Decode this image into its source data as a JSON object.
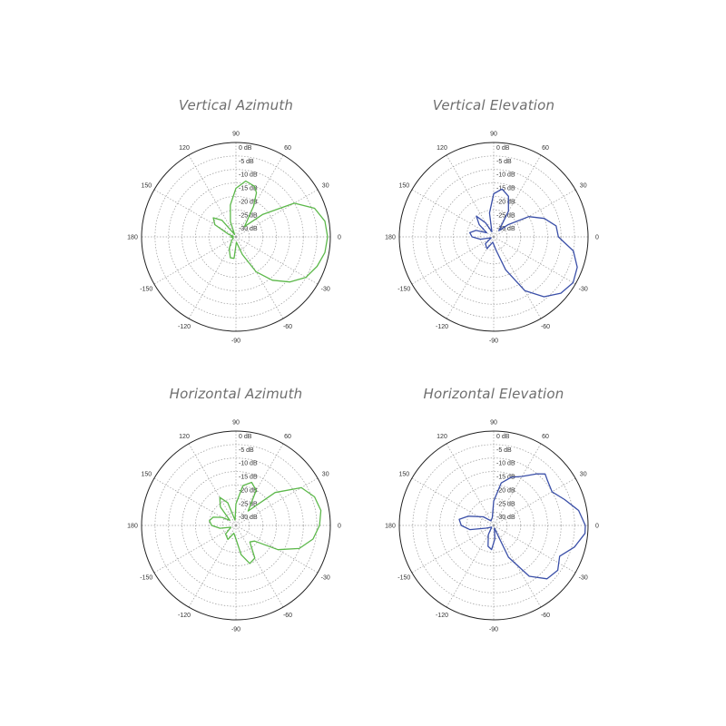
{
  "colors": {
    "green": "#5cb84a",
    "blue": "#3a4fa8",
    "grid": "#9a9a9a",
    "title": "#6e6e6e"
  },
  "chart_data": [
    {
      "type": "polar",
      "title": "Vertical Azimuth",
      "color": "#5cb84a",
      "angle_labels": [
        "0",
        "30",
        "60",
        "90",
        "120",
        "150",
        "180",
        "-150",
        "-120",
        "-90",
        "-60",
        "-30"
      ],
      "angle_ticks": [
        0,
        30,
        60,
        90,
        120,
        150,
        180,
        -150,
        -120,
        -90,
        -60,
        -30
      ],
      "radial_labels": [
        "0 dB",
        "-5 dB",
        "-10 dB",
        "-15 dB",
        "-20 dB",
        "-25 dB",
        "-30 dB"
      ],
      "rlim": [
        -35,
        0
      ],
      "grid": true,
      "points": [
        [
          0,
          -1
        ],
        [
          10,
          -1.5
        ],
        [
          20,
          -4
        ],
        [
          30,
          -10
        ],
        [
          40,
          -22
        ],
        [
          50,
          -30
        ],
        [
          60,
          -22
        ],
        [
          65,
          -17
        ],
        [
          70,
          -15
        ],
        [
          80,
          -14
        ],
        [
          90,
          -17
        ],
        [
          100,
          -23
        ],
        [
          110,
          -29
        ],
        [
          120,
          -34
        ],
        [
          130,
          -27
        ],
        [
          140,
          -24
        ],
        [
          150,
          -26
        ],
        [
          160,
          -32
        ],
        [
          170,
          -34
        ],
        [
          180,
          -33
        ],
        [
          200,
          -34
        ],
        [
          220,
          -33
        ],
        [
          240,
          -30
        ],
        [
          255,
          -27
        ],
        [
          265,
          -27
        ],
        [
          275,
          -33
        ],
        [
          290,
          -28
        ],
        [
          300,
          -20
        ],
        [
          310,
          -14
        ],
        [
          320,
          -9
        ],
        [
          330,
          -5
        ],
        [
          340,
          -3
        ],
        [
          350,
          -1.5
        ],
        [
          360,
          -1
        ]
      ]
    },
    {
      "type": "polar",
      "title": "Vertical Elevation",
      "color": "#3a4fa8",
      "angle_labels": [
        "0",
        "30",
        "60",
        "90",
        "120",
        "150",
        "180",
        "-150",
        "-120",
        "-90",
        "-60",
        "-30"
      ],
      "angle_ticks": [
        0,
        30,
        60,
        90,
        120,
        150,
        180,
        -150,
        -120,
        -90,
        -60,
        -30
      ],
      "radial_labels": [
        "0 dB",
        "-5 dB",
        "-10 dB",
        "-15 dB",
        "-20 dB",
        "-25 dB",
        "-30 dB"
      ],
      "rlim": [
        -35,
        0
      ],
      "grid": true,
      "points": [
        [
          0,
          -11
        ],
        [
          10,
          -11.5
        ],
        [
          20,
          -15
        ],
        [
          30,
          -20
        ],
        [
          40,
          -28
        ],
        [
          50,
          -32
        ],
        [
          60,
          -24
        ],
        [
          70,
          -19
        ],
        [
          80,
          -17
        ],
        [
          90,
          -19
        ],
        [
          100,
          -26
        ],
        [
          110,
          -33
        ],
        [
          120,
          -29
        ],
        [
          130,
          -25
        ],
        [
          140,
          -28
        ],
        [
          150,
          -32
        ],
        [
          160,
          -28
        ],
        [
          170,
          -26
        ],
        [
          180,
          -27
        ],
        [
          190,
          -30
        ],
        [
          200,
          -34
        ],
        [
          220,
          -31
        ],
        [
          240,
          -30
        ],
        [
          260,
          -33
        ],
        [
          280,
          -30
        ],
        [
          290,
          -22
        ],
        [
          300,
          -12
        ],
        [
          310,
          -6
        ],
        [
          320,
          -2.5
        ],
        [
          330,
          -1
        ],
        [
          340,
          -2
        ],
        [
          350,
          -5
        ],
        [
          360,
          -11
        ]
      ]
    },
    {
      "type": "polar",
      "title": "Horizontal Azimuth",
      "color": "#5cb84a",
      "angle_labels": [
        "0",
        "30",
        "60",
        "90",
        "120",
        "150",
        "180",
        "-150",
        "-120",
        "-90",
        "-60",
        "-30"
      ],
      "angle_ticks": [
        0,
        30,
        60,
        90,
        120,
        150,
        180,
        -150,
        -120,
        -90,
        -60,
        -30
      ],
      "radial_labels": [
        "0 dB",
        "-5 dB",
        "-10 dB",
        "-15 dB",
        "-20 dB",
        "-25 dB",
        "-30 dB"
      ],
      "rlim": [
        -35,
        0
      ],
      "grid": true,
      "points": [
        [
          0,
          -4
        ],
        [
          10,
          -3
        ],
        [
          20,
          -4
        ],
        [
          30,
          -7
        ],
        [
          40,
          -16
        ],
        [
          50,
          -28
        ],
        [
          60,
          -20
        ],
        [
          70,
          -18
        ],
        [
          80,
          -20
        ],
        [
          90,
          -27
        ],
        [
          100,
          -33
        ],
        [
          110,
          -26
        ],
        [
          120,
          -23
        ],
        [
          130,
          -26
        ],
        [
          140,
          -32
        ],
        [
          150,
          -29
        ],
        [
          160,
          -26
        ],
        [
          170,
          -25
        ],
        [
          180,
          -26
        ],
        [
          190,
          -29
        ],
        [
          200,
          -33
        ],
        [
          220,
          -30
        ],
        [
          240,
          -29
        ],
        [
          255,
          -32
        ],
        [
          270,
          -30
        ],
        [
          280,
          -24
        ],
        [
          290,
          -20
        ],
        [
          300,
          -21
        ],
        [
          310,
          -27
        ],
        [
          320,
          -26
        ],
        [
          330,
          -17
        ],
        [
          340,
          -10
        ],
        [
          350,
          -6
        ],
        [
          360,
          -4
        ]
      ]
    },
    {
      "type": "polar",
      "title": "Horizontal Elevation",
      "color": "#3a4fa8",
      "angle_labels": [
        "0",
        "30",
        "60",
        "90",
        "120",
        "150",
        "180",
        "-150",
        "-120",
        "-90",
        "-60",
        "-30"
      ],
      "angle_ticks": [
        0,
        30,
        60,
        90,
        120,
        150,
        180,
        -150,
        -120,
        -90,
        -60,
        -30
      ],
      "radial_labels": [
        "0 dB",
        "-5 dB",
        "-10 dB",
        "-15 dB",
        "-20 dB",
        "-25 dB",
        "-30 dB"
      ],
      "rlim": [
        -35,
        0
      ],
      "grid": true,
      "points": [
        [
          0,
          -1
        ],
        [
          10,
          -3
        ],
        [
          20,
          -7
        ],
        [
          30,
          -10
        ],
        [
          40,
          -9
        ],
        [
          45,
          -8
        ],
        [
          50,
          -10
        ],
        [
          60,
          -14
        ],
        [
          70,
          -16
        ],
        [
          80,
          -19
        ],
        [
          90,
          -26
        ],
        [
          100,
          -32
        ],
        [
          120,
          -33
        ],
        [
          140,
          -30
        ],
        [
          160,
          -25
        ],
        [
          170,
          -22
        ],
        [
          180,
          -23
        ],
        [
          190,
          -26
        ],
        [
          200,
          -32
        ],
        [
          220,
          -34
        ],
        [
          240,
          -31
        ],
        [
          255,
          -27
        ],
        [
          265,
          -26
        ],
        [
          275,
          -30
        ],
        [
          285,
          -34
        ],
        [
          295,
          -22
        ],
        [
          305,
          -12
        ],
        [
          315,
          -7
        ],
        [
          325,
          -6
        ],
        [
          335,
          -8
        ],
        [
          345,
          -4
        ],
        [
          355,
          -1
        ],
        [
          360,
          -1
        ]
      ]
    }
  ]
}
